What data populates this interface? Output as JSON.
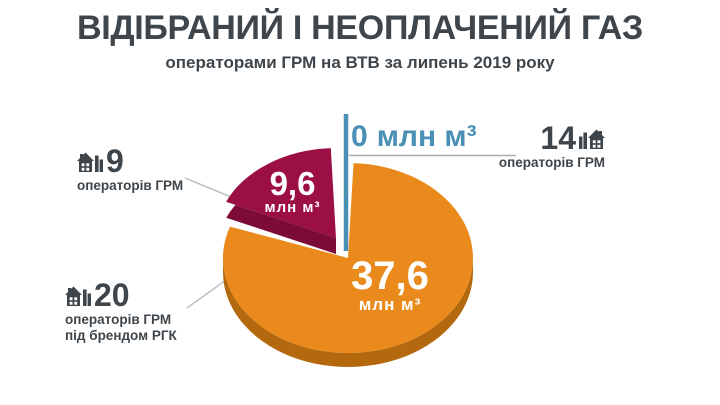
{
  "chart_data": {
    "type": "pie",
    "title": "ВІДІБРАНИЙ І НЕОПЛАЧЕНИЙ ГАЗ",
    "subtitle": "операторами ГРМ на ВТВ за липень 2019 року",
    "unit": "млн м³",
    "legend_position": "callouts",
    "slices": [
      {
        "name": "операторів ГРМ під брендом РГК",
        "operators": 20,
        "value": 37.6,
        "display": "37,6",
        "color": "#EA8A1C",
        "side_color": "#B5690F"
      },
      {
        "name": "операторів ГРМ",
        "operators": 9,
        "value": 9.6,
        "display": "9,6",
        "color": "#9C0F45",
        "side_color": "#7C0B37"
      },
      {
        "name": "операторів ГРМ",
        "operators": 14,
        "value": 0,
        "display": "0",
        "color": "#4A8FB5"
      }
    ]
  },
  "callouts": {
    "maroon": {
      "line1": "операторів ГРМ"
    },
    "orange": {
      "line1": "операторів ГРМ",
      "line2": "під брендом РГК"
    },
    "zero": {
      "line1": "операторів ГРМ"
    }
  },
  "colors": {
    "text_dark": "#3E464C",
    "accent_blue": "#4A8FB5",
    "leader_line": "#BCC1C4",
    "background": "#FFFFFF"
  }
}
